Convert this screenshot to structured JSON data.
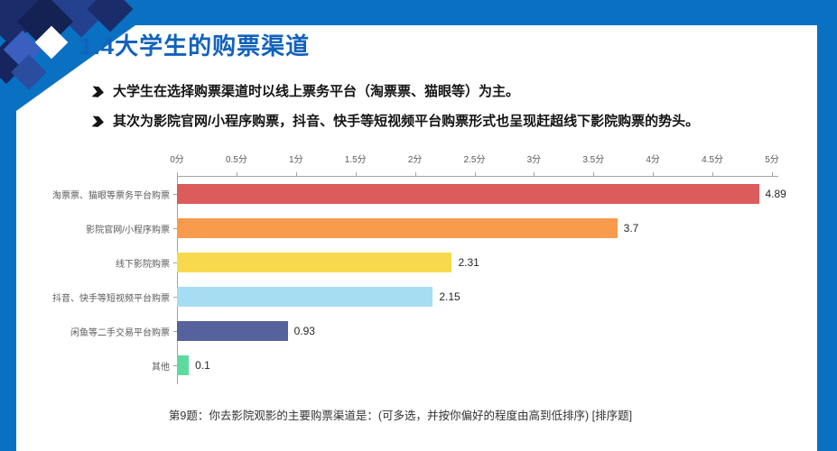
{
  "slide": {
    "title": "1.4大学生的购票渠道",
    "bullet_icon": "arrow-right",
    "bullets": [
      "大学生在选择购票渠道时以线上票务平台（淘票票、猫眼等）为主。",
      "其次为影院官网/小程序购票，抖音、快手等短视频平台购票形式也呈现赶超线下影院购票的势头。"
    ],
    "footer": "第9题：你去影院观影的主要购票渠道是：(可多选，并按你偏好的程度由高到低排序) [排序题]"
  },
  "colors": {
    "frame_blue": "#0a70c2",
    "title_blue": "#1262bb",
    "deco_navy_dark": "#16255f",
    "deco_navy": "#1b2c6b",
    "deco_blue": "#24418f",
    "axis_gray": "#a3a3a3",
    "label_gray": "#595959",
    "text_dark": "#141414"
  },
  "chart_data": {
    "type": "bar",
    "orientation": "horizontal",
    "title": "",
    "xlabel": "",
    "ylabel": "",
    "xlim": [
      0,
      5
    ],
    "x_ticks": [
      "0分",
      "0.5分",
      "1分",
      "1.5分",
      "2分",
      "2.5分",
      "3分",
      "3.5分",
      "4分",
      "4.5分",
      "5分"
    ],
    "grid": false,
    "legend": "none",
    "categories": [
      "淘票票、猫眼等票务平台购票",
      "影院官网/小程序购票",
      "线下影院购票",
      "抖音、快手等短视频平台购票",
      "闲鱼等二手交易平台购票",
      "其他"
    ],
    "values": [
      4.89,
      3.7,
      2.31,
      2.15,
      0.93,
      0.1
    ],
    "value_labels": [
      "4.89",
      "3.7",
      "2.31",
      "2.15",
      "0.93",
      "0.1"
    ],
    "bar_colors": [
      "#dc5b5b",
      "#f89b4d",
      "#f8d94e",
      "#a6ddf3",
      "#55629b",
      "#5ed9a0"
    ]
  }
}
